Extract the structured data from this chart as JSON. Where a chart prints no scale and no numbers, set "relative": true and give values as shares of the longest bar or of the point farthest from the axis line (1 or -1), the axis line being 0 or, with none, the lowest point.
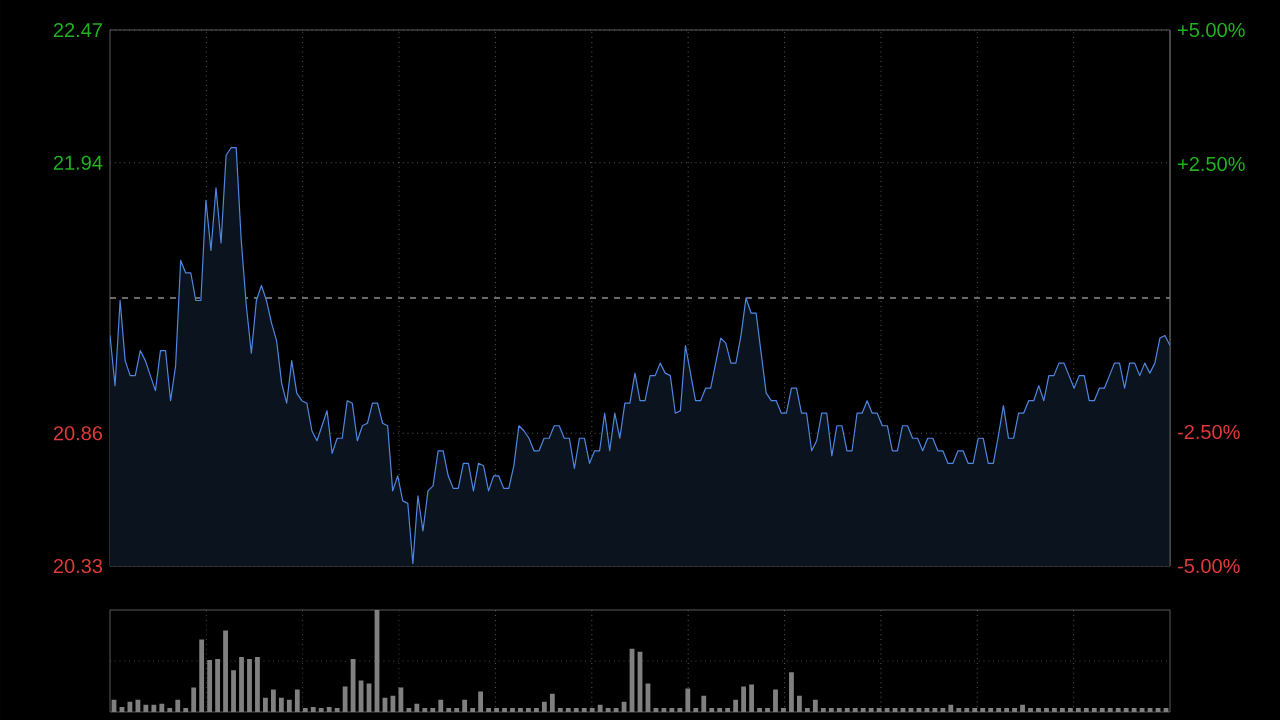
{
  "chart_data": [
    {
      "type": "area",
      "color": "#4f86e0",
      "grid": true,
      "categories": [
        null,
        null,
        null,
        null,
        null,
        null,
        null,
        null,
        null,
        null,
        null,
        null,
        null,
        null,
        null,
        null,
        null,
        null,
        null,
        null,
        null,
        null,
        null,
        null,
        null,
        null,
        null,
        null,
        null,
        null,
        null,
        null,
        null,
        null,
        null,
        null,
        null,
        null,
        null,
        null,
        null,
        null,
        null,
        null,
        null,
        null,
        null,
        null,
        null,
        null,
        null,
        null,
        null,
        null,
        null,
        null,
        null,
        null,
        null,
        null,
        null,
        null,
        null,
        null,
        null,
        null,
        null,
        null,
        null,
        null,
        null,
        null,
        null,
        null,
        null,
        null,
        null,
        null,
        null,
        null,
        null,
        null,
        null,
        null,
        null,
        null,
        null,
        null,
        null,
        null,
        null,
        null,
        null,
        null,
        null,
        null,
        null,
        null,
        null,
        null,
        null,
        null,
        null,
        null,
        null,
        null,
        null,
        null,
        null,
        null,
        null,
        null,
        null,
        null,
        null,
        null,
        null,
        null,
        null,
        null,
        null,
        null,
        null,
        null,
        null,
        null,
        null,
        null,
        null,
        null,
        null,
        null,
        null,
        null,
        null,
        null,
        null,
        null,
        null,
        null,
        null,
        null,
        null,
        null,
        null,
        null,
        null,
        null,
        null,
        null,
        null,
        null,
        null,
        null,
        null,
        null,
        null,
        null,
        null,
        null,
        null,
        null,
        null,
        null,
        null,
        null,
        null,
        null,
        null,
        null,
        null,
        null,
        null,
        null,
        null,
        null,
        null,
        null,
        null,
        null,
        null,
        null,
        null,
        null,
        null,
        null,
        null,
        null,
        null,
        null,
        null,
        null,
        null,
        null,
        null,
        null,
        null,
        null,
        null,
        null,
        null,
        null,
        null,
        null,
        null,
        null,
        null,
        null,
        null,
        null,
        null
      ],
      "values": [
        21.25,
        21.05,
        21.39,
        21.15,
        21.09,
        21.09,
        21.19,
        21.15,
        21.09,
        21.03,
        21.19,
        21.19,
        20.99,
        21.13,
        21.55,
        21.5,
        21.5,
        21.39,
        21.39,
        21.79,
        21.59,
        21.84,
        21.62,
        21.97,
        22.0,
        22.0,
        21.63,
        21.37,
        21.18,
        21.39,
        21.45,
        21.39,
        21.3,
        21.23,
        21.06,
        20.98,
        21.15,
        21.02,
        20.99,
        20.98,
        20.87,
        20.83,
        20.89,
        20.95,
        20.78,
        20.84,
        20.84,
        20.99,
        20.98,
        20.83,
        20.89,
        20.9,
        20.98,
        20.98,
        20.9,
        20.89,
        20.63,
        20.69,
        20.59,
        20.58,
        20.34,
        20.61,
        20.47,
        20.63,
        20.65,
        20.79,
        20.79,
        20.69,
        20.64,
        20.64,
        20.74,
        20.74,
        20.63,
        20.74,
        20.73,
        20.63,
        20.69,
        20.69,
        20.64,
        20.64,
        20.73,
        20.89,
        20.87,
        20.84,
        20.79,
        20.79,
        20.84,
        20.84,
        20.89,
        20.89,
        20.84,
        20.84,
        20.72,
        20.84,
        20.84,
        20.74,
        20.79,
        20.79,
        20.94,
        20.79,
        20.94,
        20.84,
        20.98,
        20.98,
        21.1,
        20.99,
        20.99,
        21.09,
        21.09,
        21.14,
        21.1,
        21.09,
        20.94,
        20.95,
        21.21,
        21.1,
        20.99,
        20.99,
        21.04,
        21.04,
        21.14,
        21.24,
        21.22,
        21.14,
        21.14,
        21.25,
        21.4,
        21.34,
        21.34,
        21.18,
        21.02,
        20.99,
        20.99,
        20.94,
        20.94,
        21.04,
        21.04,
        20.94,
        20.94,
        20.79,
        20.83,
        20.94,
        20.94,
        20.77,
        20.89,
        20.89,
        20.79,
        20.79,
        20.94,
        20.94,
        20.99,
        20.94,
        20.94,
        20.89,
        20.89,
        20.79,
        20.79,
        20.89,
        20.89,
        20.84,
        20.84,
        20.79,
        20.84,
        20.84,
        20.79,
        20.79,
        20.74,
        20.74,
        20.79,
        20.79,
        20.74,
        20.74,
        20.84,
        20.84,
        20.74,
        20.74,
        20.85,
        20.97,
        20.84,
        20.84,
        20.94,
        20.94,
        20.99,
        20.99,
        21.05,
        20.99,
        21.09,
        21.09,
        21.14,
        21.14,
        21.09,
        21.04,
        21.09,
        21.09,
        20.99,
        20.99,
        21.04,
        21.04,
        21.09,
        21.14,
        21.14,
        21.04,
        21.14,
        21.14,
        21.09,
        21.14,
        21.1,
        21.14,
        21.24,
        21.25,
        21.21
      ],
      "ylim": [
        20.33,
        22.47
      ],
      "yticks": [
        22.47,
        21.94,
        20.86,
        20.33
      ],
      "y2lim": [
        -5,
        5
      ],
      "y2ticks": [
        {
          "value": 5,
          "label": "+5.00%"
        },
        {
          "value": 2.5,
          "label": "+2.50%"
        },
        {
          "value": -2.5,
          "label": "-2.50%"
        },
        {
          "value": -5,
          "label": "-5.00%"
        }
      ],
      "ref_lines": [
        {
          "axis": "y",
          "value": 21.4,
          "line_style": "dashed",
          "color": "#8c8c8c"
        }
      ]
    },
    {
      "type": "bar",
      "relative": true,
      "color": "#808080",
      "grid": true,
      "categories": [
        null,
        null,
        null,
        null,
        null,
        null,
        null,
        null,
        null,
        null,
        null,
        null,
        null,
        null,
        null,
        null,
        null,
        null,
        null,
        null,
        null,
        null,
        null,
        null,
        null,
        null,
        null,
        null,
        null,
        null,
        null,
        null,
        null,
        null,
        null,
        null,
        null,
        null,
        null,
        null,
        null,
        null,
        null,
        null,
        null,
        null,
        null,
        null,
        null,
        null,
        null,
        null,
        null,
        null,
        null,
        null,
        null,
        null,
        null,
        null,
        null,
        null,
        null,
        null,
        null,
        null,
        null,
        null,
        null,
        null,
        null,
        null,
        null,
        null,
        null,
        null,
        null,
        null,
        null,
        null,
        null,
        null,
        null,
        null,
        null,
        null,
        null,
        null,
        null,
        null,
        null,
        null,
        null,
        null,
        null,
        null,
        null,
        null,
        null,
        null,
        null,
        null,
        null,
        null,
        null,
        null,
        null,
        null,
        null,
        null,
        null,
        null,
        null,
        null,
        null,
        null,
        null,
        null,
        null,
        null,
        null,
        null,
        null,
        null,
        null,
        null,
        null,
        null,
        null,
        null,
        null,
        null,
        null
      ],
      "values": [
        0.12,
        0.05,
        0.1,
        0.12,
        0.07,
        0.07,
        0.08,
        0.04,
        0.12,
        0.04,
        0.24,
        0.71,
        0.51,
        0.52,
        0.8,
        0.41,
        0.54,
        0.52,
        0.54,
        0.14,
        0.22,
        0.14,
        0.12,
        0.22,
        0.04,
        0.05,
        0.04,
        0.05,
        0.04,
        0.25,
        0.52,
        0.31,
        0.28,
        1,
        0.14,
        0.16,
        0.24,
        0.04,
        0.08,
        0.04,
        0.04,
        0.12,
        0.04,
        0.04,
        0.12,
        0.04,
        0.2,
        0.04,
        0.04,
        0.04,
        0.04,
        0.04,
        0.04,
        0.04,
        0.1,
        0.18,
        0.04,
        0.04,
        0.04,
        0.04,
        0.04,
        0.07,
        0.04,
        0.04,
        0.1,
        0.62,
        0.59,
        0.28,
        0.04,
        0.04,
        0.04,
        0.04,
        0.23,
        0.04,
        0.16,
        0.04,
        0.04,
        0.04,
        0.12,
        0.25,
        0.27,
        0.04,
        0.04,
        0.22,
        0.04,
        0.39,
        0.16,
        0.04,
        0.12,
        0.04,
        0.04,
        0.04,
        0.04,
        0.04,
        0.04,
        0.04,
        0.04,
        0.04,
        0.04,
        0.04,
        0.04,
        0.04,
        0.04,
        0.04,
        0.04,
        0.07,
        0.04,
        0.04,
        0.04,
        0.04,
        0.04,
        0.04,
        0.04,
        0.04,
        0.07,
        0.04,
        0.04,
        0.04,
        0.04,
        0.04,
        0.04,
        0.04,
        0.04,
        0.04,
        0.04,
        0.04,
        0.04,
        0.04,
        0.04,
        0.04,
        0.04,
        0.04,
        0.04
      ]
    }
  ]
}
